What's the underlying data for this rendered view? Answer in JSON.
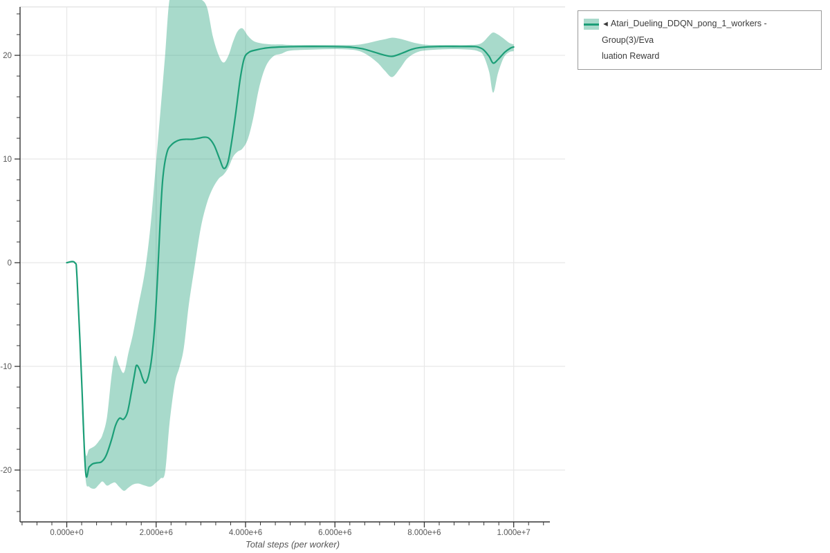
{
  "page": {
    "background": "#ffffff"
  },
  "axes": {
    "x_title": "Total steps (per worker)",
    "x_tick_labels": [
      "0.000e+0",
      "2.000e+6",
      "4.000e+6",
      "6.000e+6",
      "8.000e+6",
      "1.000e+7"
    ],
    "y_tick_labels": [
      "-20",
      "-10",
      "0",
      "10",
      "20"
    ]
  },
  "legend": {
    "marker": "◄",
    "label_line1": "Atari_Dueling_DDQN_pong_1_workers - Group(3)/Eva",
    "label_line2": "luation Reward",
    "full_label": "Atari_Dueling_DDQN_pong_1_workers - Group(3)/Evaluation Reward"
  },
  "colors": {
    "line": "#1b9e77",
    "band": "rgba(27,158,119,0.38)",
    "grid": "#e7e7e7",
    "top_border": "#e0e0e0",
    "axis": "#333333",
    "tick_label": "#555555",
    "legend_border": "#999999",
    "legend_text": "#3a3a3a"
  },
  "chart_data": {
    "type": "line",
    "title": "",
    "xlabel": "Total steps (per worker)",
    "ylabel": "",
    "x_scale": 1000000,
    "xlim": [
      -1.045,
      11.15
    ],
    "ylim": [
      -25,
      24.67
    ],
    "x_major_ticks": [
      0,
      2,
      4,
      6,
      8,
      10
    ],
    "x_minor_step": 0.33333,
    "y_major_ticks": [
      -20,
      -10,
      0,
      10,
      20
    ],
    "y_minor_step": 2,
    "grid": "major-both",
    "legend_position": "outside-top-right",
    "series": [
      {
        "name": "Atari_Dueling_DDQN_pong_1_workers - Group(3)/Evaluation Reward",
        "color": "#1b9e77",
        "smoothed_line": [
          [
            0.0,
            0
          ],
          [
            0.18,
            0
          ],
          [
            0.23,
            -1.5
          ],
          [
            0.33,
            -11.0
          ],
          [
            0.42,
            -20.1
          ],
          [
            0.5,
            -19.7
          ],
          [
            0.58,
            -19.4
          ],
          [
            0.68,
            -19.3
          ],
          [
            0.78,
            -19.2
          ],
          [
            0.88,
            -18.6
          ],
          [
            1.0,
            -17.1
          ],
          [
            1.09,
            -15.7
          ],
          [
            1.18,
            -15.0
          ],
          [
            1.27,
            -15.1
          ],
          [
            1.36,
            -14.4
          ],
          [
            1.45,
            -12.4
          ],
          [
            1.52,
            -10.7
          ],
          [
            1.56,
            -9.9
          ],
          [
            1.63,
            -10.3
          ],
          [
            1.7,
            -11.2
          ],
          [
            1.76,
            -11.6
          ],
          [
            1.83,
            -10.9
          ],
          [
            1.9,
            -9.2
          ],
          [
            1.97,
            -6.0
          ],
          [
            2.03,
            -1.5
          ],
          [
            2.09,
            4.0
          ],
          [
            2.15,
            8.2
          ],
          [
            2.24,
            10.6
          ],
          [
            2.35,
            11.4
          ],
          [
            2.5,
            11.8
          ],
          [
            2.65,
            11.9
          ],
          [
            2.8,
            11.9
          ],
          [
            2.95,
            12.0
          ],
          [
            3.07,
            12.1
          ],
          [
            3.18,
            12.0
          ],
          [
            3.3,
            11.3
          ],
          [
            3.42,
            10.0
          ],
          [
            3.51,
            9.1
          ],
          [
            3.6,
            9.6
          ],
          [
            3.68,
            11.4
          ],
          [
            3.78,
            14.4
          ],
          [
            3.88,
            17.7
          ],
          [
            3.97,
            19.7
          ],
          [
            4.08,
            20.3
          ],
          [
            4.22,
            20.5
          ],
          [
            4.45,
            20.7
          ],
          [
            4.75,
            20.8
          ],
          [
            5.2,
            20.85
          ],
          [
            5.8,
            20.85
          ],
          [
            6.3,
            20.8
          ],
          [
            6.6,
            20.65
          ],
          [
            6.85,
            20.35
          ],
          [
            7.08,
            20.05
          ],
          [
            7.28,
            19.9
          ],
          [
            7.5,
            20.2
          ],
          [
            7.7,
            20.55
          ],
          [
            7.9,
            20.75
          ],
          [
            8.3,
            20.85
          ],
          [
            8.8,
            20.85
          ],
          [
            9.1,
            20.85
          ],
          [
            9.2,
            20.8
          ],
          [
            9.32,
            20.55
          ],
          [
            9.45,
            19.9
          ],
          [
            9.54,
            19.25
          ],
          [
            9.65,
            19.6
          ],
          [
            9.8,
            20.3
          ],
          [
            9.93,
            20.7
          ],
          [
            10.0,
            20.8
          ]
        ],
        "confidence_band": [
          [
            0.34,
            -14.5,
            -13.8
          ],
          [
            0.42,
            -20.8,
            -18.4
          ],
          [
            0.5,
            -21.6,
            -18.0
          ],
          [
            0.62,
            -21.8,
            -17.7
          ],
          [
            0.72,
            -21.4,
            -17.2
          ],
          [
            0.8,
            -21.1,
            -16.6
          ],
          [
            0.9,
            -21.5,
            -14.9
          ],
          [
            1.0,
            -21.3,
            -11.0
          ],
          [
            1.08,
            -21.2,
            -9.0
          ],
          [
            1.17,
            -21.6,
            -9.9
          ],
          [
            1.28,
            -22.0,
            -10.6
          ],
          [
            1.38,
            -21.7,
            -8.7
          ],
          [
            1.48,
            -21.4,
            -6.9
          ],
          [
            1.6,
            -21.3,
            -4.2
          ],
          [
            1.75,
            -21.5,
            -0.8
          ],
          [
            1.88,
            -21.6,
            3.8
          ],
          [
            2.0,
            -21.2,
            9.8
          ],
          [
            2.1,
            -20.8,
            14.8
          ],
          [
            2.2,
            -20.2,
            20.0
          ],
          [
            2.3,
            -15.5,
            25.4
          ],
          [
            2.42,
            -11.6,
            25.4
          ],
          [
            2.52,
            -10.1,
            25.4
          ],
          [
            2.62,
            -8.2,
            25.4
          ],
          [
            2.73,
            -4.1,
            25.4
          ],
          [
            2.86,
            -0.4,
            25.4
          ],
          [
            3.0,
            3.4,
            25.4
          ],
          [
            3.14,
            5.8,
            24.6
          ],
          [
            3.27,
            7.2,
            21.8
          ],
          [
            3.4,
            8.1,
            20.0
          ],
          [
            3.51,
            8.5,
            19.3
          ],
          [
            3.62,
            9.2,
            20.0
          ],
          [
            3.72,
            10.2,
            21.3
          ],
          [
            3.82,
            10.7,
            22.3
          ],
          [
            3.93,
            11.0,
            22.6
          ],
          [
            4.05,
            11.9,
            21.9
          ],
          [
            4.17,
            13.9,
            21.4
          ],
          [
            4.3,
            16.8,
            21.2
          ],
          [
            4.45,
            18.9,
            21.1
          ],
          [
            4.62,
            19.9,
            21.05
          ],
          [
            4.8,
            20.15,
            21.05
          ],
          [
            5.0,
            20.45,
            21.0
          ],
          [
            5.5,
            20.55,
            21.0
          ],
          [
            6.0,
            20.6,
            21.0
          ],
          [
            6.45,
            20.5,
            21.0
          ],
          [
            6.7,
            20.1,
            21.15
          ],
          [
            6.95,
            19.3,
            21.4
          ],
          [
            7.12,
            18.5,
            21.55
          ],
          [
            7.28,
            17.9,
            21.7
          ],
          [
            7.45,
            18.7,
            21.6
          ],
          [
            7.62,
            19.7,
            21.4
          ],
          [
            7.84,
            20.3,
            21.15
          ],
          [
            8.1,
            20.5,
            21.0
          ],
          [
            8.6,
            20.6,
            21.0
          ],
          [
            9.0,
            20.55,
            21.0
          ],
          [
            9.2,
            20.4,
            21.05
          ],
          [
            9.32,
            20.0,
            21.3
          ],
          [
            9.45,
            18.4,
            21.9
          ],
          [
            9.54,
            16.4,
            22.2
          ],
          [
            9.65,
            18.3,
            22.0
          ],
          [
            9.78,
            19.8,
            21.6
          ],
          [
            9.9,
            20.3,
            21.2
          ],
          [
            10.0,
            20.4,
            21.05
          ]
        ]
      }
    ]
  }
}
